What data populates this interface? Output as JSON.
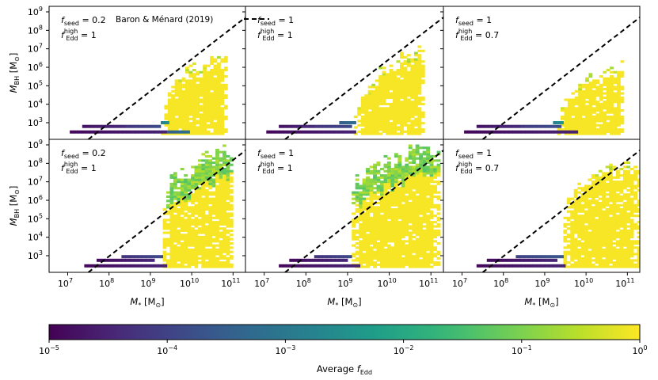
{
  "chart_data": {
    "type": "heatmap",
    "description": "2D histograms of black hole mass vs stellar mass, colored by average Eddington fraction",
    "rows": 2,
    "cols": 3,
    "x": {
      "label_main": "M",
      "label_sub": "*",
      "label_unit": "[M",
      "label_unit_sub": "⊙",
      "label_close": "]",
      "log_range": [
        6.55,
        11.3
      ],
      "ticks": [
        {
          "exp": 7,
          "label": "10",
          "sup": "7"
        },
        {
          "exp": 8,
          "label": "10",
          "sup": "8"
        },
        {
          "exp": 9,
          "label": "10",
          "sup": "9"
        },
        {
          "exp": 10,
          "label": "10",
          "sup": "10"
        },
        {
          "exp": 11,
          "label": "10",
          "sup": "11"
        }
      ]
    },
    "y": {
      "label_main": "M",
      "label_sub": "BH",
      "label_unit": "[M",
      "label_unit_sub": "⊙",
      "label_close": "]",
      "log_range": [
        2.1,
        9.3
      ],
      "ticks": [
        {
          "exp": 3,
          "label": "10",
          "sup": "3"
        },
        {
          "exp": 4,
          "label": "10",
          "sup": "4"
        },
        {
          "exp": 5,
          "label": "10",
          "sup": "5"
        },
        {
          "exp": 6,
          "label": "10",
          "sup": "6"
        },
        {
          "exp": 7,
          "label": "10",
          "sup": "7"
        },
        {
          "exp": 8,
          "label": "10",
          "sup": "8"
        },
        {
          "exp": 9,
          "label": "10",
          "sup": "9"
        }
      ]
    },
    "reference_line": {
      "label": "Baron & Ménard (2019)",
      "style": "dashed",
      "log_points": [
        [
          7.5,
          2.1
        ],
        [
          11.3,
          8.7
        ]
      ]
    },
    "panels": [
      {
        "id": "top-left",
        "seed_label": "f",
        "seed_sub": "seed",
        "seed_value": "= 0.2",
        "edd_label": "f",
        "edd_sup": "high",
        "edd_sub": "Edd",
        "edd_value": "= 1",
        "show_legend": true,
        "stripes": [
          {
            "y": 2.5,
            "x0": 7.05,
            "x1": 9.4,
            "c": 0.02
          },
          {
            "y": 2.5,
            "x0": 9.4,
            "x1": 9.95,
            "c": 0.3
          },
          {
            "y": 2.8,
            "x0": 7.35,
            "x1": 8.4,
            "c": 0.05
          },
          {
            "y": 2.8,
            "x0": 8.4,
            "x1": 9.25,
            "c": 0.16
          },
          {
            "y": 3.0,
            "x0": 9.25,
            "x1": 9.45,
            "c": 0.45
          }
        ],
        "blob": {
          "x_min": 9.25,
          "x_max": 10.85,
          "y_low_top": 3.8,
          "y_high_top": 6.9,
          "c": 0.99,
          "upper_green": false
        }
      },
      {
        "id": "top-mid",
        "seed_label": "f",
        "seed_sub": "seed",
        "seed_value": "= 1",
        "edd_label": "f",
        "edd_sup": "high",
        "edd_sub": "Edd",
        "edd_value": "= 1",
        "show_legend": false,
        "stripes": [
          {
            "y": 2.5,
            "x0": 7.05,
            "x1": 9.2,
            "c": 0.02
          },
          {
            "y": 2.8,
            "x0": 7.35,
            "x1": 8.2,
            "c": 0.05
          },
          {
            "y": 2.8,
            "x0": 8.2,
            "x1": 9.1,
            "c": 0.15
          },
          {
            "y": 3.0,
            "x0": 8.8,
            "x1": 9.2,
            "c": 0.3
          }
        ],
        "blob": {
          "x_min": 9.15,
          "x_max": 10.85,
          "y_low_top": 3.6,
          "y_high_top": 7.2,
          "c": 0.99,
          "upper_green": false
        }
      },
      {
        "id": "top-right",
        "seed_label": "f",
        "seed_sub": "seed",
        "seed_value": "= 1",
        "edd_label": "f",
        "edd_sup": "high",
        "edd_sub": "Edd",
        "edd_value": "= 0.7",
        "show_legend": false,
        "stripes": [
          {
            "y": 2.5,
            "x0": 7.05,
            "x1": 9.8,
            "c": 0.02
          },
          {
            "y": 2.8,
            "x0": 7.35,
            "x1": 8.4,
            "c": 0.05
          },
          {
            "y": 2.8,
            "x0": 8.4,
            "x1": 9.4,
            "c": 0.17
          },
          {
            "y": 3.0,
            "x0": 9.2,
            "x1": 9.45,
            "c": 0.45
          }
        ],
        "blob": {
          "x_min": 9.3,
          "x_max": 10.9,
          "y_low_top": 3.3,
          "y_high_top": 6.4,
          "c": 0.99,
          "upper_green": false
        }
      },
      {
        "id": "bottom-left",
        "seed_label": "f",
        "seed_sub": "seed",
        "seed_value": "= 0.2",
        "edd_label": "f",
        "edd_sup": "high",
        "edd_sub": "Edd",
        "edd_value": "= 1",
        "show_legend": false,
        "stripes": [
          {
            "y": 2.45,
            "x0": 7.4,
            "x1": 9.4,
            "c": 0.02
          },
          {
            "y": 2.75,
            "x0": 7.7,
            "x1": 9.1,
            "c": 0.03
          },
          {
            "y": 2.95,
            "x0": 8.3,
            "x1": 9.3,
            "c": 0.15
          }
        ],
        "blob": {
          "x_min": 9.3,
          "x_max": 11.0,
          "y_low_top": 6.2,
          "y_high_top": 9.0,
          "c": 0.99,
          "upper_green": true
        }
      },
      {
        "id": "bottom-mid",
        "seed_label": "f",
        "seed_sub": "seed",
        "seed_value": "= 1",
        "edd_label": "f",
        "edd_sup": "high",
        "edd_sub": "Edd",
        "edd_value": "= 1",
        "show_legend": false,
        "stripes": [
          {
            "y": 2.45,
            "x0": 7.35,
            "x1": 9.3,
            "c": 0.02
          },
          {
            "y": 2.75,
            "x0": 7.6,
            "x1": 9.0,
            "c": 0.03
          },
          {
            "y": 2.95,
            "x0": 8.2,
            "x1": 9.1,
            "c": 0.15
          }
        ],
        "blob": {
          "x_min": 9.1,
          "x_max": 11.2,
          "y_low_top": 6.6,
          "y_high_top": 9.2,
          "c": 0.99,
          "upper_green": true
        }
      },
      {
        "id": "bottom-right",
        "seed_label": "f",
        "seed_sub": "seed",
        "seed_value": "= 1",
        "edd_label": "f",
        "edd_sup": "high",
        "edd_sub": "Edd",
        "edd_value": "= 0.7",
        "show_legend": false,
        "stripes": [
          {
            "y": 2.45,
            "x0": 7.35,
            "x1": 9.5,
            "c": 0.02
          },
          {
            "y": 2.75,
            "x0": 7.6,
            "x1": 9.3,
            "c": 0.03
          },
          {
            "y": 2.95,
            "x0": 8.3,
            "x1": 9.45,
            "c": 0.2
          }
        ],
        "blob": {
          "x_min": 9.45,
          "x_max": 11.25,
          "y_low_top": 5.8,
          "y_high_top": 8.2,
          "c": 0.99,
          "upper_green": false
        }
      }
    ],
    "colorbar": {
      "label": "Average ",
      "label_f": "f",
      "label_sub": "Edd",
      "colormap": "viridis",
      "range_exp": [
        -5,
        0
      ],
      "ticks": [
        {
          "exp": -5,
          "label": "10",
          "sup": "−5"
        },
        {
          "exp": -4,
          "label": "10",
          "sup": "−4"
        },
        {
          "exp": -3,
          "label": "10",
          "sup": "−3"
        },
        {
          "exp": -2,
          "label": "10",
          "sup": "−2"
        },
        {
          "exp": -1,
          "label": "10",
          "sup": "−1"
        },
        {
          "exp": 0,
          "label": "10",
          "sup": "0"
        }
      ],
      "colors": [
        "#440154",
        "#482878",
        "#3e4989",
        "#31688e",
        "#26828e",
        "#1f9e89",
        "#35b779",
        "#6ece58",
        "#b5de2b",
        "#fde725"
      ]
    }
  }
}
